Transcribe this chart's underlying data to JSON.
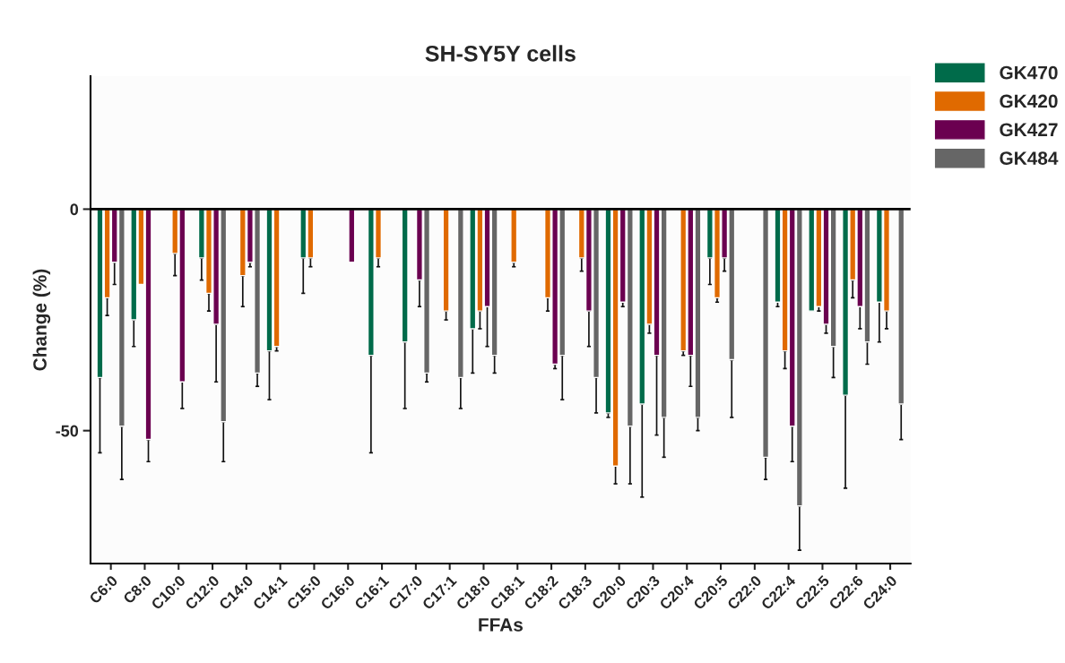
{
  "chart_data": {
    "type": "bar",
    "title": "SH-SY5Y cells",
    "xlabel": "FFAs",
    "ylabel": "Change (%)",
    "categories": [
      "C6:0",
      "C8:0",
      "C10:0",
      "C12:0",
      "C14:0",
      "C14:1",
      "C15:0",
      "C16:0",
      "C16:1",
      "C17:0",
      "C17:1",
      "C18:0",
      "C18:1",
      "C18:2",
      "C18:3",
      "C20:0",
      "C20:3",
      "C20:4",
      "C20:5",
      "C22:0",
      "C22:4",
      "C22:5",
      "C22:6",
      "C24:0"
    ],
    "series": [
      {
        "name": "GK470",
        "color": "#006b4a",
        "values": [
          -38,
          -25,
          null,
          -11,
          null,
          -32,
          -11,
          null,
          -33,
          -30,
          null,
          -27,
          null,
          null,
          null,
          -46,
          -44,
          null,
          -11,
          null,
          -21,
          -23,
          -42,
          -21
        ],
        "errors": [
          [
            -55,
            -38
          ],
          [
            -31,
            -25
          ],
          null,
          [
            -16,
            -11
          ],
          null,
          [
            -43,
            -32
          ],
          [
            -19,
            -11
          ],
          null,
          [
            -55,
            -33
          ],
          [
            -45,
            -30
          ],
          null,
          [
            -37,
            -27
          ],
          null,
          null,
          null,
          [
            -47,
            -46
          ],
          [
            -65,
            -44
          ],
          null,
          [
            -17,
            -11
          ],
          null,
          [
            -22,
            -21
          ],
          null,
          [
            -63,
            -42
          ],
          [
            -30,
            -21
          ]
        ]
      },
      {
        "name": "GK420",
        "color": "#e06a00",
        "values": [
          -20,
          -17,
          -10,
          -19,
          -15,
          -31,
          -11,
          null,
          -11,
          null,
          -23,
          -23,
          -12,
          -20,
          -11,
          -58,
          -26,
          -32,
          -20,
          null,
          -32,
          -22,
          -16,
          -23
        ],
        "errors": [
          [
            -24,
            -20
          ],
          null,
          [
            -15,
            -10
          ],
          [
            -23,
            -19
          ],
          [
            -22,
            -15
          ],
          [
            -32,
            -31
          ],
          [
            -13,
            -11
          ],
          null,
          [
            -13,
            -11
          ],
          null,
          [
            -25,
            -23
          ],
          [
            -27,
            -23
          ],
          [
            -13,
            -12
          ],
          [
            -23,
            -20
          ],
          [
            -14,
            -11
          ],
          [
            -62,
            -58
          ],
          [
            -28,
            -26
          ],
          [
            -33,
            -32
          ],
          [
            -21,
            -20
          ],
          null,
          [
            -36,
            -32
          ],
          [
            -23,
            -22
          ],
          [
            -20,
            -16
          ],
          [
            -27,
            -23
          ]
        ]
      },
      {
        "name": "GK427",
        "color": "#6b0050",
        "values": [
          -12,
          -52,
          -39,
          -26,
          -12,
          null,
          null,
          -12,
          null,
          -16,
          null,
          -22,
          null,
          -35,
          -23,
          -21,
          -33,
          -33,
          -11,
          null,
          -49,
          -26,
          -22,
          null
        ],
        "errors": [
          [
            -17,
            -12
          ],
          [
            -57,
            -52
          ],
          [
            -45,
            -39
          ],
          [
            -39,
            -26
          ],
          [
            -13,
            -12
          ],
          null,
          null,
          null,
          null,
          [
            -22,
            -16
          ],
          null,
          [
            -31,
            -22
          ],
          null,
          [
            -36,
            -35
          ],
          [
            -31,
            -23
          ],
          [
            -22,
            -21
          ],
          [
            -51,
            -33
          ],
          [
            -40,
            -33
          ],
          [
            -14,
            -11
          ],
          null,
          [
            -57,
            -49
          ],
          [
            -28,
            -26
          ],
          [
            -27,
            -22
          ],
          null
        ]
      },
      {
        "name": "GK484",
        "color": "#666666",
        "values": [
          -49,
          null,
          null,
          -48,
          -37,
          null,
          null,
          null,
          null,
          -37,
          -38,
          -33,
          null,
          -33,
          -38,
          -49,
          -47,
          -47,
          -34,
          -56,
          -67,
          -31,
          -30,
          -44
        ],
        "errors": [
          [
            -61,
            -49
          ],
          null,
          null,
          [
            -57,
            -48
          ],
          [
            -40,
            -37
          ],
          null,
          null,
          null,
          null,
          [
            -39,
            -37
          ],
          [
            -45,
            -38
          ],
          [
            -37,
            -33
          ],
          null,
          [
            -43,
            -33
          ],
          [
            -46,
            -38
          ],
          [
            -62,
            -49
          ],
          [
            -56,
            -47
          ],
          [
            -50,
            -47
          ],
          [
            -47,
            -34
          ],
          [
            -61,
            -56
          ],
          [
            -77,
            -67
          ],
          [
            -38,
            -31
          ],
          [
            -35,
            -30
          ],
          [
            -52,
            -44
          ]
        ]
      }
    ],
    "ylim": [
      -80,
      30
    ],
    "yticks": [
      0,
      -50
    ],
    "ref_lines": [
      {
        "axis": "y",
        "value": 0,
        "color": "#000000"
      }
    ],
    "grid": false,
    "legend": "top right"
  }
}
